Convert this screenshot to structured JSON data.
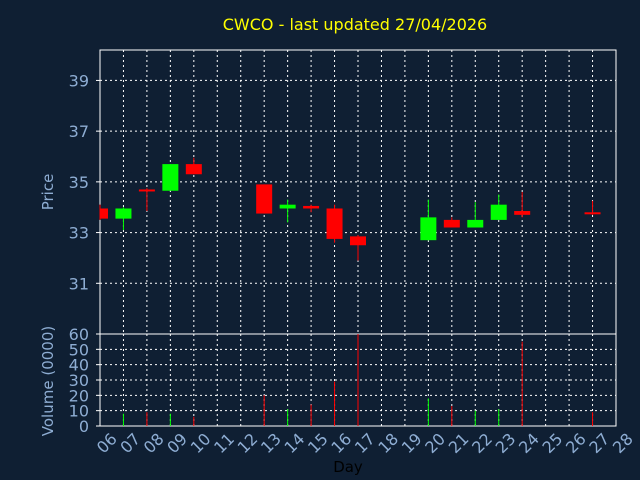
{
  "chart_data": {
    "type": "candlestick",
    "title": "CWCO - last updated 27/04/2026",
    "xlabel": "Day",
    "price_panel": {
      "ylabel": "Price",
      "ylim": [
        29.0,
        40.2
      ],
      "yticks": [
        31,
        33,
        35,
        37,
        39
      ]
    },
    "volume_panel": {
      "ylabel": "Volume (0000)",
      "ylim": [
        0,
        60
      ],
      "yticks": [
        0,
        10,
        20,
        30,
        40,
        50,
        60
      ]
    },
    "x_tick_labels": [
      "06",
      "07",
      "08",
      "09",
      "10",
      "11",
      "12",
      "13",
      "14",
      "15",
      "16",
      "17",
      "18",
      "19",
      "20",
      "21",
      "22",
      "23",
      "24",
      "25",
      "26",
      "27",
      "28"
    ],
    "grid": true,
    "colors": {
      "up": "#00ff00",
      "down": "#ff0000",
      "title": "#ffff00",
      "axis_text": "#8eadd3",
      "background": "#0f1f33",
      "grid": "#ffffff"
    },
    "candles": [
      {
        "day": "06",
        "open": 33.95,
        "high": 34.1,
        "low": 33.5,
        "close": 33.55,
        "volume": 0
      },
      {
        "day": "07",
        "open": 33.55,
        "high": 34.0,
        "low": 33.1,
        "close": 33.95,
        "volume": 8
      },
      {
        "day": "08",
        "open": 34.7,
        "high": 34.75,
        "low": 33.85,
        "close": 34.65,
        "volume": 9
      },
      {
        "day": "09",
        "open": 34.65,
        "high": 35.7,
        "low": 34.65,
        "close": 35.7,
        "volume": 8
      },
      {
        "day": "10",
        "open": 35.7,
        "high": 35.95,
        "low": 35.3,
        "close": 35.3,
        "volume": 6
      },
      {
        "day": "13",
        "open": 34.9,
        "high": 34.9,
        "low": 33.75,
        "close": 33.75,
        "volume": 20
      },
      {
        "day": "14",
        "open": 33.95,
        "high": 34.3,
        "low": 33.4,
        "close": 34.1,
        "volume": 11
      },
      {
        "day": "15",
        "open": 34.05,
        "high": 34.1,
        "low": 33.8,
        "close": 33.95,
        "volume": 14
      },
      {
        "day": "16",
        "open": 33.95,
        "high": 34.1,
        "low": 32.6,
        "close": 32.75,
        "volume": 29
      },
      {
        "day": "17",
        "open": 32.85,
        "high": 32.9,
        "low": 31.9,
        "close": 32.5,
        "volume": 60
      },
      {
        "day": "20",
        "open": 32.7,
        "high": 34.3,
        "low": 32.7,
        "close": 33.6,
        "volume": 18
      },
      {
        "day": "21",
        "open": 33.5,
        "high": 33.6,
        "low": 33.2,
        "close": 33.2,
        "volume": 13
      },
      {
        "day": "22",
        "open": 33.2,
        "high": 34.2,
        "low": 33.2,
        "close": 33.5,
        "volume": 10
      },
      {
        "day": "23",
        "open": 33.5,
        "high": 34.5,
        "low": 33.5,
        "close": 34.1,
        "volume": 11
      },
      {
        "day": "24",
        "open": 33.85,
        "high": 34.6,
        "low": 33.6,
        "close": 33.7,
        "volume": 55
      },
      {
        "day": "27",
        "open": 33.8,
        "high": 34.25,
        "low": 33.7,
        "close": 33.75,
        "volume": 9
      }
    ]
  }
}
